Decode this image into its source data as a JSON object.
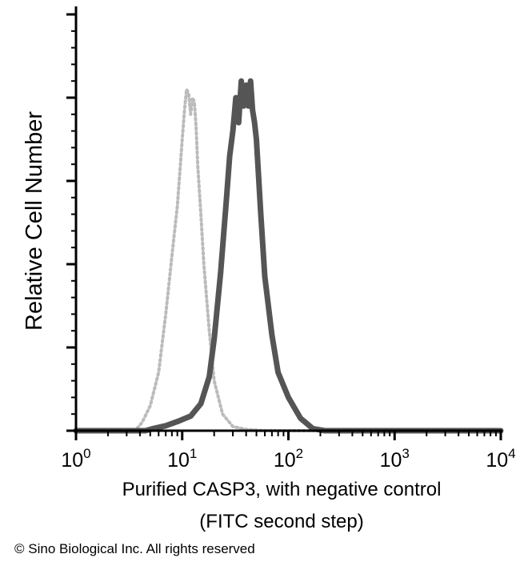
{
  "chart_data": {
    "type": "line",
    "xlabel_lines": [
      "Purified CASP3, with negative control",
      "(FITC second step)"
    ],
    "ylabel": "Relative Cell Number",
    "x_scale": "log",
    "xlim": [
      1,
      10000
    ],
    "ylim": [
      0,
      100
    ],
    "x_ticks": [
      {
        "value": 1,
        "base": "10",
        "exp": "0"
      },
      {
        "value": 10,
        "base": "10",
        "exp": "1"
      },
      {
        "value": 100,
        "base": "10",
        "exp": "2"
      },
      {
        "value": 1000,
        "base": "10",
        "exp": "3"
      },
      {
        "value": 10000,
        "base": "10",
        "exp": "4"
      }
    ],
    "y_major_ticks": [
      0,
      20,
      40,
      60,
      80,
      100
    ],
    "grid": false,
    "series": [
      {
        "style": "dotted",
        "color": "#bbbbbb",
        "x": [
          1,
          3.6,
          4.2,
          5.0,
          6.0,
          7.0,
          8.0,
          9.0,
          10.0,
          10.5,
          11.0,
          11.5,
          12.0,
          12.5,
          13.0,
          13.5,
          14.0,
          15.0,
          16.0,
          18.0,
          20.0,
          24.0,
          30.0,
          40.0,
          60.0,
          10000
        ],
        "y": [
          0,
          0,
          2,
          6,
          14,
          28,
          42,
          54,
          70,
          77,
          82,
          81,
          76,
          80,
          79,
          73,
          64,
          52,
          40,
          24,
          12,
          4,
          1,
          0.3,
          0,
          0
        ]
      },
      {
        "style": "solid",
        "color": "#555555",
        "x": [
          1,
          4.5,
          5.5,
          7.0,
          9.0,
          12.0,
          15.0,
          18.0,
          20.0,
          23.0,
          26.0,
          28.0,
          30.0,
          32.0,
          34.0,
          36.0,
          38.0,
          40.0,
          42.0,
          44.0,
          46.0,
          48.0,
          50.0,
          55.0,
          60.0,
          70.0,
          80.0,
          100.0,
          130.0,
          170.0,
          220.0,
          10000
        ],
        "y": [
          0,
          0,
          0.6,
          1.2,
          2.2,
          3.5,
          6.5,
          13,
          22,
          38,
          55,
          66,
          72,
          80,
          74,
          84,
          78,
          83,
          78,
          84,
          77,
          74,
          70,
          52,
          37,
          23,
          14,
          8,
          3,
          0.5,
          0,
          0
        ]
      }
    ]
  },
  "copyright": "© Sino Biological Inc. All rights reserved"
}
